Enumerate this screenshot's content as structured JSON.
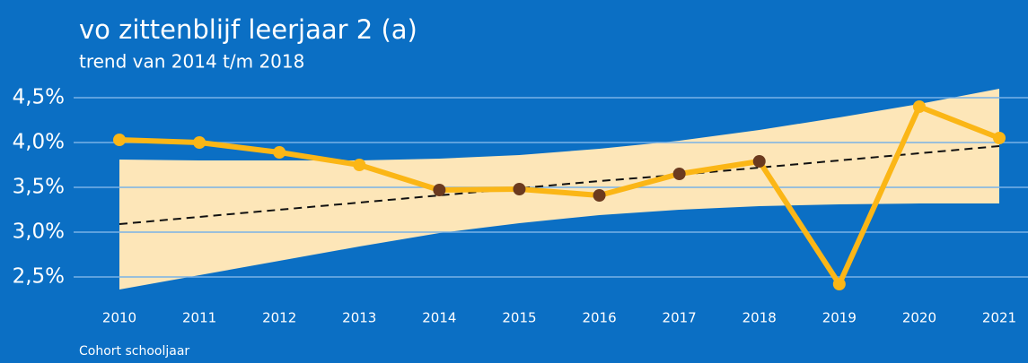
{
  "chart_data": {
    "type": "line",
    "title": "vo zittenblijf leerjaar 2 (a)",
    "subtitle": "trend van 2014 t/m 2018",
    "x_label": "Cohort schooljaar",
    "categories": [
      "2010",
      "2011",
      "2012",
      "2013",
      "2014",
      "2015",
      "2016",
      "2017",
      "2018",
      "2019",
      "2020",
      "2021"
    ],
    "values": [
      4.03,
      4.0,
      3.89,
      3.75,
      3.47,
      3.48,
      3.41,
      3.65,
      3.79,
      2.42,
      4.4,
      4.05
    ],
    "color": "#fbb616",
    "marker_colors": [
      "#fbb616",
      "#fbb616",
      "#fbb616",
      "#fbb616",
      "#6b3a1f",
      "#6b3a1f",
      "#6b3a1f",
      "#6b3a1f",
      "#6b3a1f",
      "#fbb616",
      "#fbb616",
      "#fbb616"
    ],
    "trend": [
      3.09,
      3.17,
      3.25,
      3.33,
      3.41,
      3.49,
      3.57,
      3.64,
      3.72,
      3.8,
      3.88,
      3.96
    ],
    "trend_color": "#111111",
    "band_upper": [
      3.81,
      3.8,
      3.8,
      3.8,
      3.82,
      3.86,
      3.93,
      4.02,
      4.14,
      4.28,
      4.43,
      4.6
    ],
    "band_lower": [
      2.36,
      2.52,
      2.68,
      2.84,
      2.99,
      3.1,
      3.19,
      3.25,
      3.29,
      3.31,
      3.32,
      3.32
    ],
    "band_color": "#fde6b8",
    "ylim": [
      2.3,
      4.7
    ],
    "yticks": [
      {
        "value": 2.5,
        "label": "2,5%"
      },
      {
        "value": 3.0,
        "label": "3,0%"
      },
      {
        "value": 3.5,
        "label": "3,5%"
      },
      {
        "value": 4.0,
        "label": "4,0%"
      },
      {
        "value": 4.5,
        "label": "4,5%"
      }
    ],
    "grid": true
  }
}
